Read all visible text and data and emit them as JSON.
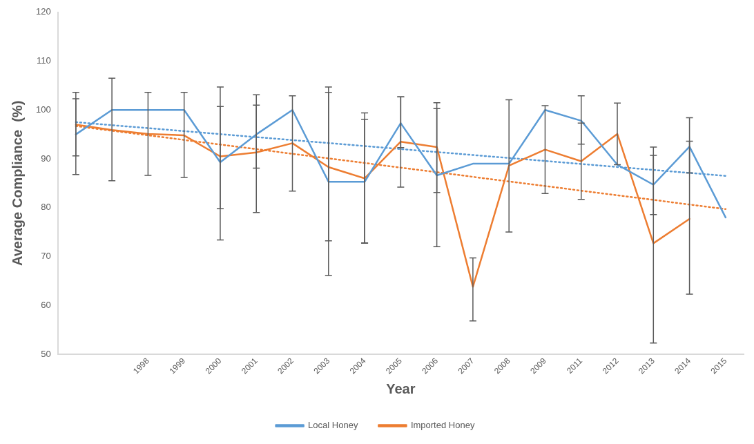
{
  "chart_data": {
    "type": "line",
    "xlabel": "Year",
    "ylabel": "Average Compliance  (%)",
    "categories": [
      null,
      null,
      "1998",
      "1999",
      "2000",
      "2001",
      "2002",
      "2003",
      "2004",
      "2005",
      "2006",
      "2007",
      "2008",
      "2009",
      "2011",
      "2012",
      "2013",
      "2014",
      "2015"
    ],
    "series": [
      {
        "name": "Local Honey",
        "color": "#5b9bd5",
        "values": [
          95,
          100,
          100,
          100,
          89.3,
          95,
          100,
          85.3,
          85.3,
          97.3,
          86.6,
          89,
          89,
          100,
          97.8,
          88.8,
          84.7,
          92.5,
          78
        ],
        "errors": [
          [
            86.8,
            103.6
          ],
          [
            85.5,
            106.5
          ],
          [
            86.6,
            103.6
          ],
          [
            86.2,
            103.6
          ],
          [
            73.4,
            104.7
          ],
          [
            88.1,
            103.1
          ],
          null,
          [
            66.1,
            104.7
          ],
          [
            72.7,
            98.1
          ],
          [
            92.3,
            102.7
          ],
          [
            72.0,
            101.5
          ],
          null,
          [
            75.0,
            102.1
          ],
          null,
          [
            93.0,
            102.9
          ],
          null,
          [
            78.6,
            90.7
          ],
          [
            87.1,
            98.4
          ],
          null
        ]
      },
      {
        "name": "Imported Honey",
        "color": "#ed7d31",
        "values": [
          97,
          95.9,
          95.1,
          94.8,
          90.5,
          91.3,
          93.2,
          88.3,
          86,
          93.5,
          92.4,
          63.8,
          88.6,
          91.9,
          89.5,
          95.1,
          72.7,
          77.7,
          null
        ],
        "errors": [
          [
            90.6,
            102.3
          ],
          null,
          null,
          null,
          [
            79.8,
            100.7
          ],
          [
            79.0,
            101.0
          ],
          [
            83.4,
            102.9
          ],
          [
            73.2,
            103.6
          ],
          [
            72.8,
            99.4
          ],
          [
            84.2,
            102.7
          ],
          [
            83.1,
            100.3
          ],
          [
            56.8,
            69.7
          ],
          null,
          [
            82.9,
            100.9
          ],
          [
            81.7,
            97.3
          ],
          [
            88.8,
            101.4
          ],
          [
            52.3,
            92.4
          ],
          [
            62.3,
            93.6
          ],
          null
        ]
      },
      {
        "color": "#5b9bd5",
        "line_style": "dotted",
        "values": [
          97.5,
          null,
          null,
          null,
          null,
          null,
          null,
          null,
          null,
          null,
          null,
          null,
          null,
          null,
          null,
          null,
          null,
          null,
          86.5
        ]
      },
      {
        "color": "#ed7d31",
        "line_style": "dotted",
        "values": [
          96.7,
          null,
          null,
          null,
          null,
          null,
          null,
          null,
          null,
          null,
          null,
          null,
          null,
          null,
          null,
          null,
          null,
          null,
          79.7
        ]
      }
    ],
    "ylim": [
      50,
      120
    ],
    "yticks": [
      50,
      60,
      70,
      80,
      90,
      100,
      110,
      120
    ],
    "grid": false,
    "legend": "bottom",
    "marker": "none",
    "line_style": "solid"
  }
}
